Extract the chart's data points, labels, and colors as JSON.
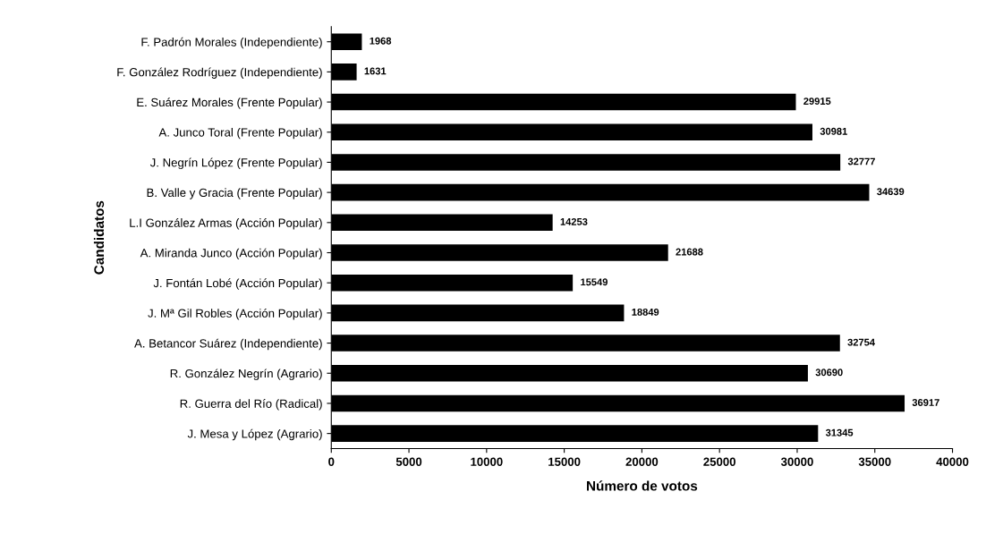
{
  "chart_data": {
    "type": "bar",
    "orientation": "horizontal",
    "xlabel": "Número de votos",
    "ylabel": "Candidatos",
    "categories": [
      "F. Padrón Morales (Independiente)",
      "F. González Rodríguez (Independiente)",
      "E. Suárez Morales (Frente Popular)",
      "A. Junco Toral (Frente Popular)",
      "J. Negrín López (Frente Popular)",
      "B. Valle y Gracia (Frente Popular)",
      "L.I González Armas (Acción Popular)",
      "A. Miranda Junco (Acción Popular)",
      "J. Fontán Lobé (Acción Popular)",
      "J. Mª Gil Robles (Acción Popular)",
      "A. Betancor Suárez (Independiente)",
      "R. González Negrín (Agrario)",
      "R. Guerra del Río (Radical)",
      "J. Mesa y López (Agrario)"
    ],
    "values": [
      1968,
      1631,
      29915,
      30981,
      32777,
      34639,
      14253,
      21688,
      15549,
      18849,
      32754,
      30690,
      36917,
      31345
    ],
    "color": "#000000",
    "xlim": [
      0,
      40000
    ],
    "xticks": [
      0,
      5000,
      10000,
      15000,
      20000,
      25000,
      30000,
      35000,
      40000
    ],
    "grid": false,
    "data_labels": true
  }
}
